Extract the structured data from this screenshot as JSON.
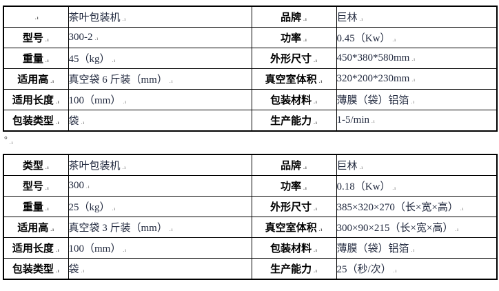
{
  "document": {
    "type": "product-spec-sheet",
    "cell_end_mark": ".ı",
    "paragraph_separator": "°",
    "colors": {
      "border": "#000000",
      "label_text": "#000000",
      "value_text": "#222a3f",
      "background": "#ffffff"
    }
  },
  "tables": [
    {
      "name": "tea-packing-machine-300-2",
      "rows": [
        [
          "",
          "茶叶包装机",
          "品牌",
          "巨林"
        ],
        [
          "型号",
          "300-2",
          "功率",
          "0.45（Kw）"
        ],
        [
          "重量",
          "45（kg）",
          "外形尺寸",
          "450*380*580mm"
        ],
        [
          "适用高",
          "真空袋 6 斤装（mm）",
          "真空室体积",
          "320*200*230mm"
        ],
        [
          "适用长度",
          "100（mm）",
          "包装材料",
          "薄膜（袋）铝箔"
        ],
        [
          "包装类型",
          "袋",
          "生产能力",
          "1-5/min"
        ]
      ]
    },
    {
      "name": "tea-packing-machine-300",
      "rows": [
        [
          "类型",
          "茶叶包装机",
          "品牌",
          "巨林"
        ],
        [
          "型号",
          "300",
          "功率",
          "0.18（Kw）"
        ],
        [
          "重量",
          "25（kg）",
          "外形尺寸",
          "385×320×270（长×宽×高）"
        ],
        [
          "适用高",
          "真空袋 3 斤装（mm）",
          "真空室体积",
          "300×90×215（长×宽×高）"
        ],
        [
          "适用长度",
          "100（mm）",
          "包装材料",
          "薄膜（袋）铝箔"
        ],
        [
          "包装类型",
          "袋",
          "生产能力",
          "25（秒/次）"
        ]
      ]
    }
  ]
}
